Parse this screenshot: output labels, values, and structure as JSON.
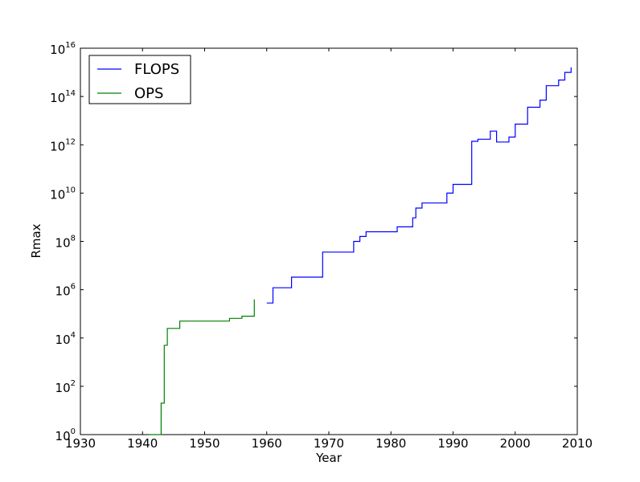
{
  "chart_data": {
    "type": "line",
    "xlabel": "Year",
    "ylabel": "Rmax",
    "xlim": [
      1930,
      2010
    ],
    "ylim_exponent": [
      0,
      16
    ],
    "yscale": "log10",
    "x_ticks": [
      "1930",
      "1940",
      "1950",
      "1960",
      "1970",
      "1980",
      "1990",
      "2000",
      "2010"
    ],
    "y_ticks": [
      {
        "base": "10",
        "exp": "0"
      },
      {
        "base": "10",
        "exp": "2"
      },
      {
        "base": "10",
        "exp": "4"
      },
      {
        "base": "10",
        "exp": "6"
      },
      {
        "base": "10",
        "exp": "8"
      },
      {
        "base": "10",
        "exp": "10"
      },
      {
        "base": "10",
        "exp": "12"
      },
      {
        "base": "10",
        "exp": "14"
      },
      {
        "base": "10",
        "exp": "16"
      }
    ],
    "legend_position": "top-left",
    "series": [
      {
        "name": "FLOPS",
        "color": "#0000ff",
        "step": true,
        "x": [
          1960.0,
          1961.0,
          1964.0,
          1969.0,
          1974.0,
          1975.0,
          1976.0,
          1981.0,
          1982.0,
          1983.5,
          1984.0,
          1984.5,
          1985.0,
          1989.0,
          1990.0,
          1993.0,
          1994.0,
          1996.0,
          1997.0,
          1999.0,
          2000.0,
          2002.0,
          2004.0,
          2005.0,
          2007.0,
          2008.0,
          2009.0
        ],
        "y": [
          280000.0,
          1200000.0,
          3300000.0,
          36000000.0,
          100000000.0,
          160000000.0,
          250000000.0,
          400000000.0,
          400000000.0,
          940000000.0,
          2400000000.0,
          2400000000.0,
          3900000000.0,
          10000000000.0,
          23000000000.0,
          1400000000000.0,
          1700000000000.0,
          3700000000000.0,
          1300000000000.0,
          2100000000000.0,
          7200000000000.0,
          36000000000000.0,
          71000000000000.0,
          280000000000000.0,
          480000000000000.0,
          1000000000000000.0,
          1600000000000000.0
        ]
      },
      {
        "name": "OPS",
        "color": "#008000",
        "step": true,
        "x": [
          1941.0,
          1943.0,
          1943.5,
          1944.0,
          1946.0,
          1950.0,
          1954.0,
          1956.0,
          1958.0
        ],
        "y": [
          1.0,
          20,
          5000.0,
          25000.0,
          50000.0,
          50000.0,
          65000.0,
          80000.0,
          400000.0
        ]
      }
    ]
  }
}
